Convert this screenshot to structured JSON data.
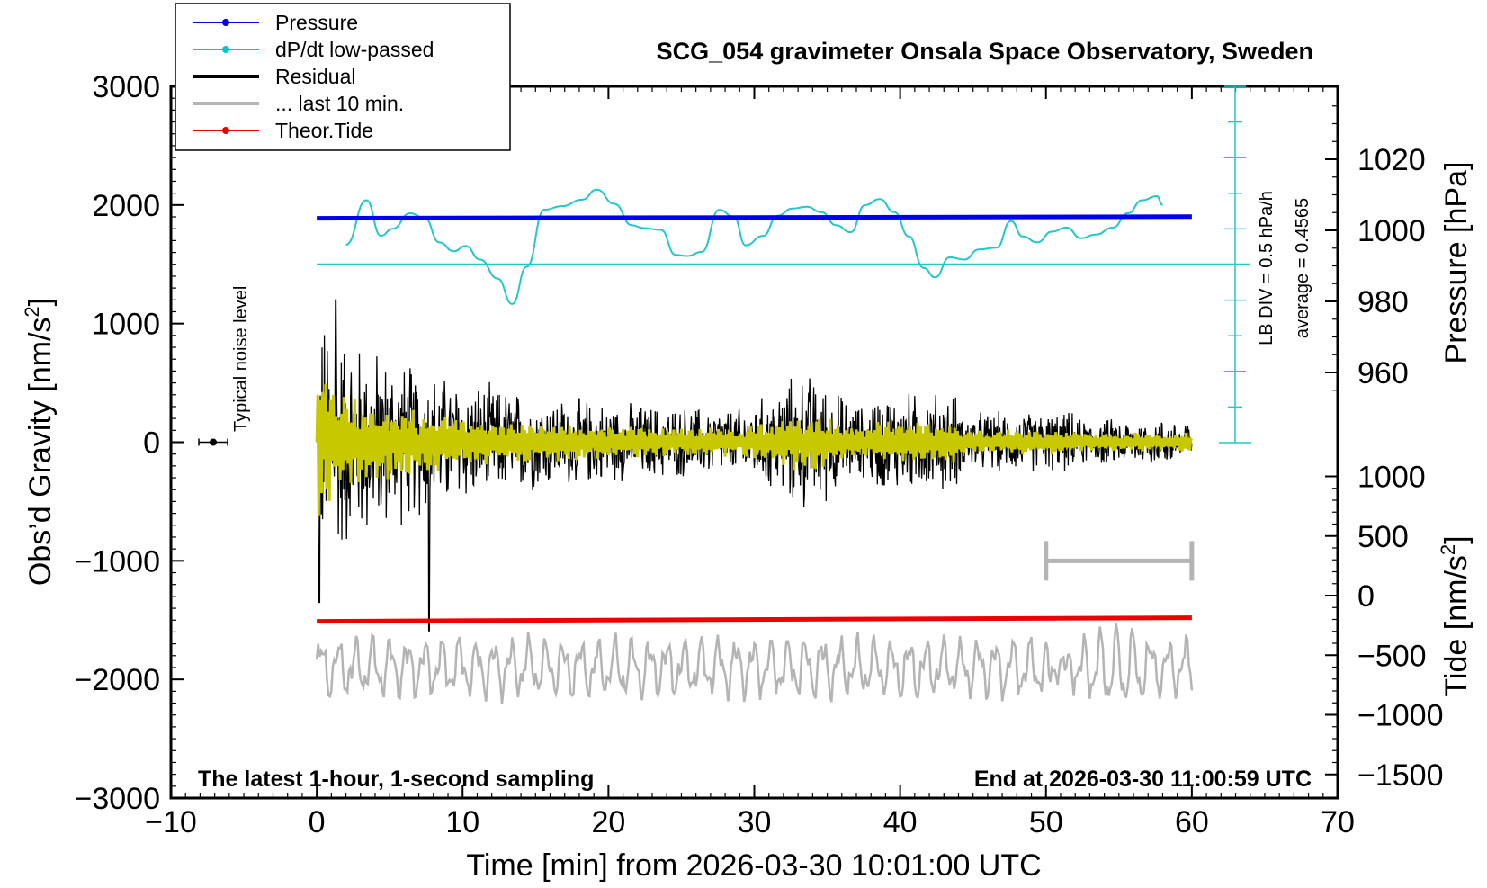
{
  "chart_data": {
    "type": "line",
    "title": "SCG_054 gravimeter Onsala Space Observatory, Sweden",
    "xlabel": "Time [min] from 2026-03-30 10:01:00 UTC",
    "ylabel_main": "Obs’d Gravity [nm/s",
    "ylabel_main_sup": "2",
    "ylabel_main_end": "]",
    "ylabel_pressure": "Pressure [hPa]",
    "ylabel_tide": "Tide [nm/s",
    "ylabel_tide_sup": "2",
    "ylabel_tide_end": "]",
    "footer_left": "The latest 1-hour, 1-second sampling",
    "footer_right": "End at 2026-03-30 11:00:59 UTC",
    "noise_label": "Typical noise level",
    "lb_div": "LB DIV = 0.5 hPa/h",
    "average": "average = 0.4565",
    "xlim": [
      -10,
      70
    ],
    "xticks": [
      "−10",
      "0",
      "10",
      "20",
      "30",
      "40",
      "50",
      "60",
      "70"
    ],
    "xtick_values": [
      -10,
      0,
      10,
      20,
      30,
      40,
      50,
      60,
      70
    ],
    "ylim_main": [
      -3000,
      3000
    ],
    "yticks_main": [
      "−3000",
      "−2000",
      "−1000",
      "0",
      "1000",
      "2000",
      "3000"
    ],
    "ytick_main_values": [
      -3000,
      -2000,
      -1000,
      0,
      1000,
      2000,
      3000
    ],
    "pressure_ticks": [
      "960",
      "980",
      "1000",
      "1020"
    ],
    "pressure_tick_values": [
      960,
      980,
      1000,
      1020
    ],
    "tide_ticks": [
      "−1500",
      "−1000",
      "−500",
      "0",
      "500",
      "1000"
    ],
    "tide_tick_values": [
      -1500,
      -1000,
      -500,
      0,
      500,
      1000
    ],
    "legend": [
      {
        "label": "Pressure",
        "color": "#0000ee",
        "marker": true
      },
      {
        "label": "dP/dt low-passed",
        "color": "#00c8c8",
        "marker": true
      },
      {
        "label": "Residual",
        "color": "#000000",
        "marker": false
      },
      {
        "label": "... last 10 min.",
        "color": "#b4b4b4",
        "marker": false
      },
      {
        "label": "Theor.Tide",
        "color": "#ee0000",
        "marker": true
      }
    ],
    "series": [
      {
        "name": "Pressure",
        "color": "#0000ee",
        "x": [
          0,
          60
        ],
        "values": [
          1888,
          1902
        ]
      },
      {
        "name": "dP/dt low-passed",
        "color": "#20c8c8",
        "x": [
          2,
          3.4,
          4.4,
          5.2,
          6.4,
          7.4,
          8.4,
          9.4,
          10.2,
          11.2,
          12.4,
          13.4,
          14.4,
          15.6,
          16.8,
          18.2,
          19.2,
          20.4,
          21.6,
          22.4,
          23.6,
          24.6,
          25.4,
          26.4,
          27.6,
          28.6,
          29.4,
          30.6,
          31.6,
          32.6,
          33.6,
          34.6,
          35.6,
          36.6,
          37.6,
          38.6,
          39.6,
          40.6,
          41.6,
          42.4,
          43.4,
          44.4,
          45.4,
          46.6,
          47.6,
          48.4,
          49.4,
          50.4,
          51.4,
          52.4,
          53.4,
          54.6,
          55.6,
          56.6,
          57.6,
          58
        ],
        "values": [
          1665,
          2040,
          1740,
          1800,
          1930,
          1890,
          1685,
          1610,
          1655,
          1540,
          1380,
          1165,
          1480,
          1960,
          1990,
          2045,
          2130,
          2010,
          1830,
          1805,
          1790,
          1580,
          1570,
          1605,
          1960,
          1900,
          1660,
          1740,
          1910,
          1970,
          1985,
          1940,
          1830,
          1770,
          2000,
          2050,
          1940,
          1735,
          1470,
          1390,
          1560,
          1540,
          1625,
          1640,
          1865,
          1735,
          1685,
          1775,
          1810,
          1720,
          1750,
          1810,
          1930,
          2040,
          2075,
          2000
        ]
      },
      {
        "name": "Residual",
        "color": "#000000",
        "x": [
          0,
          60
        ],
        "values": [
          0,
          0
        ]
      },
      {
        "name": "... last 10 min.",
        "color": "#b4b4b4",
        "x": [
          0,
          60
        ],
        "values": [
          -1850,
          -1750
        ]
      },
      {
        "name": "Theor.Tide",
        "color": "#ee0000",
        "x": [
          0,
          60
        ],
        "values": [
          -1510,
          -1480
        ]
      }
    ],
    "dpdt_baseline": 1500,
    "ten_min_bracket": [
      50,
      60
    ],
    "ten_min_bracket_level": -1000,
    "noise_marker_x": -7.1
  }
}
